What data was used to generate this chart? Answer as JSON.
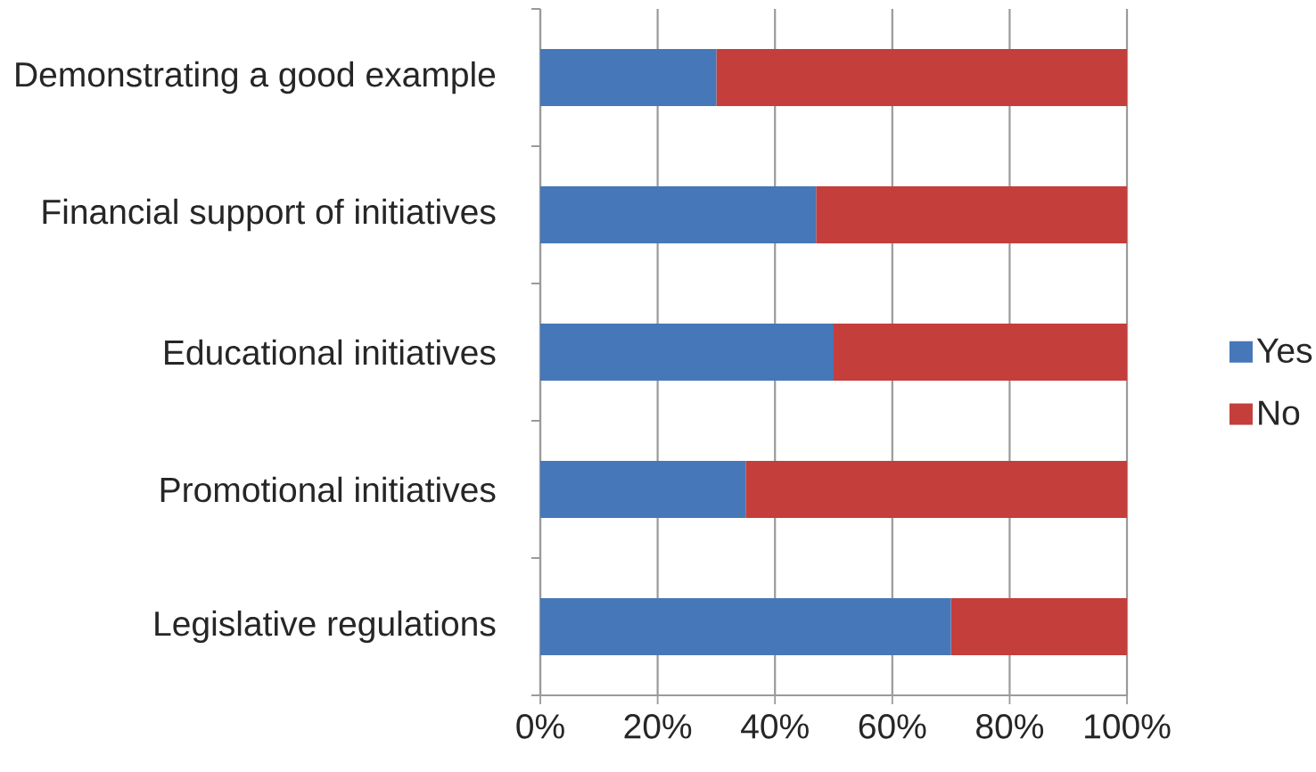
{
  "chart_data": {
    "type": "bar",
    "orientation": "horizontal",
    "stacked": true,
    "categories": [
      "Demonstrating a good example",
      "Financial support of initiatives",
      "Educational initiatives",
      "Promotional initiatives",
      "Legislative regulations"
    ],
    "series": [
      {
        "name": "Yes",
        "color": "#4677b8",
        "values": [
          30,
          47,
          50,
          35,
          70
        ]
      },
      {
        "name": "No",
        "color": "#c43e3b",
        "values": [
          70,
          53,
          50,
          65,
          30
        ]
      }
    ],
    "xlim": [
      0,
      100
    ],
    "xticks": [
      {
        "value": 0,
        "label": "0%"
      },
      {
        "value": 20,
        "label": "20%"
      },
      {
        "value": 40,
        "label": "40%"
      },
      {
        "value": 60,
        "label": "60%"
      },
      {
        "value": 80,
        "label": "80%"
      },
      {
        "value": 100,
        "label": "100%"
      }
    ],
    "grid": "x",
    "legend": "right"
  }
}
